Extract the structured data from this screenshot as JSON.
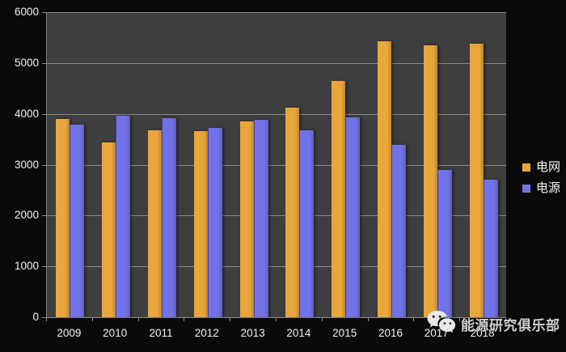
{
  "colors": {
    "page_bg": "#0a0a0a",
    "plot_bg": "#3e3e3e",
    "gridline": "#989898",
    "axis": "#8f8f8f",
    "label_text": "#f2f2f2",
    "watermark_text": "#cfcfcf",
    "series_grid": "#e9a63b",
    "series_source": "#7272e8"
  },
  "chart_data": {
    "type": "bar",
    "title": "",
    "categories": [
      "2009",
      "2010",
      "2011",
      "2012",
      "2013",
      "2014",
      "2015",
      "2016",
      "2017",
      "2018"
    ],
    "series": [
      {
        "name": "电网",
        "color": "#e9a63b",
        "values": [
          3900,
          3440,
          3680,
          3660,
          3855,
          4120,
          4640,
          5430,
          5340,
          5380
        ]
      },
      {
        "name": "电源",
        "color": "#7272e8",
        "values": [
          3790,
          3960,
          3920,
          3725,
          3880,
          3680,
          3930,
          3390,
          2900,
          2700
        ]
      }
    ],
    "xlabel": "",
    "ylabel": "",
    "ylim": [
      0,
      6000
    ],
    "ytick_step": 1000,
    "y_tick_labels": [
      "0",
      "1000",
      "2000",
      "3000",
      "4000",
      "5000",
      "6000"
    ],
    "grid": true,
    "legend_position": "right-middle"
  },
  "watermark": {
    "icon": "wechat-icon",
    "text": "能源研究俱乐部"
  }
}
